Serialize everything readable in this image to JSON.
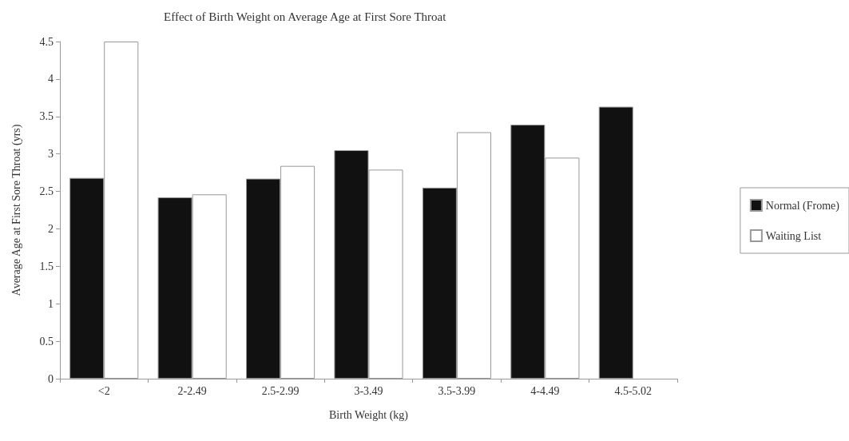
{
  "chart_data": {
    "type": "bar",
    "title": "Effect of Birth Weight on Average Age at First Sore Throat",
    "xlabel": "Birth Weight (kg)",
    "ylabel": "Average Age at First Sore Throat (yrs)",
    "categories": [
      "<2",
      "2-2.49",
      "2.5-2.99",
      "3-3.49",
      "3.5-3.99",
      "4-4.49",
      "4.5-5.02"
    ],
    "series": [
      {
        "name": "Normal (Frome)",
        "color": "#111111",
        "values": [
          2.68,
          2.42,
          2.67,
          3.05,
          2.55,
          3.39,
          3.63
        ]
      },
      {
        "name": "Waiting List",
        "color": "#ffffff",
        "values": [
          4.5,
          2.46,
          2.84,
          2.79,
          3.29,
          2.95,
          null
        ]
      }
    ],
    "ylim": [
      0,
      4.5
    ],
    "yticks": [
      0,
      0.5,
      1,
      1.5,
      2,
      2.5,
      3,
      3.5,
      4,
      4.5
    ],
    "grid": false,
    "legend": "right"
  }
}
